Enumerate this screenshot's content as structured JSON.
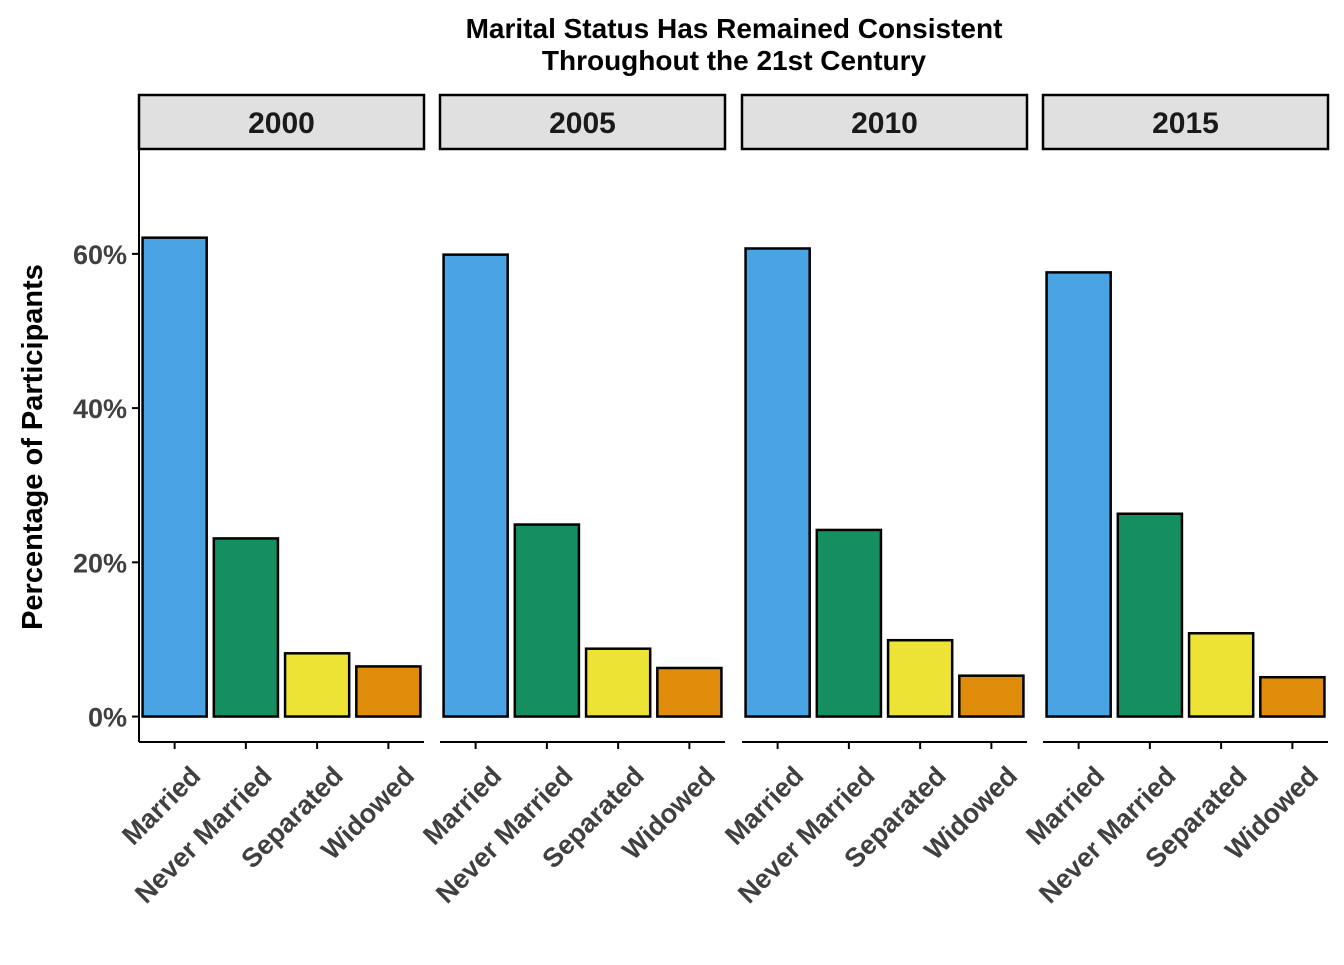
{
  "chart_data": {
    "type": "bar",
    "title_lines": [
      "Marital Status Has Remained Consistent",
      "Throughout the 21st Century"
    ],
    "xlabel": "",
    "ylabel": "Percentage of Participants",
    "ylim": [
      -3.3,
      73.6
    ],
    "y_ticks": [
      0,
      20,
      40,
      60
    ],
    "y_tick_labels": [
      "0%",
      "20%",
      "40%",
      "60%"
    ],
    "categories": [
      "Married",
      "Never Married",
      "Separated",
      "Widowed"
    ],
    "category_colors": [
      "#4aa3e3",
      "#168f60",
      "#ede334",
      "#de8c0a"
    ],
    "facets": [
      {
        "label": "2000",
        "values": [
          62.1,
          23.1,
          8.2,
          6.5
        ]
      },
      {
        "label": "2005",
        "values": [
          59.9,
          24.9,
          8.8,
          6.3
        ]
      },
      {
        "label": "2010",
        "values": [
          60.7,
          24.2,
          9.9,
          5.3
        ]
      },
      {
        "label": "2015",
        "values": [
          57.6,
          26.3,
          10.8,
          5.1
        ]
      }
    ],
    "grid": false,
    "legend": "none"
  }
}
